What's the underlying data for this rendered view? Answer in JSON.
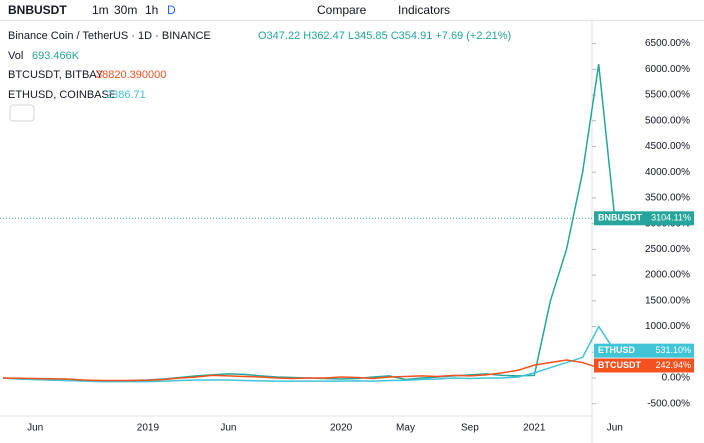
{
  "ui": {
    "symbol": "BNBUSDT",
    "intervals": [
      "1m",
      "30m",
      "1h",
      "D"
    ],
    "compare": "Compare",
    "indicators": "Indicators"
  },
  "legend": {
    "title": "Binance Coin / TetherUS · 1D · BINANCE",
    "ohlc": "O347.22 H362.47 L345.85 C354.91 +7.69 (+2.21%)",
    "vol_name": "Vol",
    "vol": "693.466K",
    "overlays": [
      {
        "name": "BTCUSDT, BITBAY",
        "value": "38820.390000",
        "color": "#f4511e"
      },
      {
        "name": "ETHUSD, COINBASE",
        "value": "2386.71",
        "color": "#40c4d8"
      }
    ]
  },
  "chart_data": {
    "type": "line",
    "categories": [
      null,
      null,
      "Jun",
      null,
      null,
      null,
      null,
      null,
      null,
      "2019",
      null,
      null,
      null,
      null,
      "Jun",
      null,
      null,
      null,
      null,
      null,
      null,
      "2020",
      null,
      null,
      null,
      "May",
      null,
      null,
      null,
      "Sep",
      null,
      null,
      null,
      "2021",
      null,
      null,
      null,
      null,
      "Jun"
    ],
    "series": [
      {
        "name": "BNBUSDT",
        "color": "#26a69a",
        "values": [
          0,
          -20,
          -30,
          -40,
          -50,
          -50,
          -60,
          -55,
          -50,
          -40,
          -20,
          10,
          40,
          60,
          80,
          70,
          40,
          20,
          10,
          0,
          -10,
          -20,
          -10,
          20,
          40,
          -30,
          0,
          20,
          40,
          60,
          80,
          50,
          40,
          50,
          1500,
          2500,
          4000,
          6100,
          3104.11
        ],
        "value_labels": [
          null,
          null,
          null,
          null,
          null,
          null,
          null,
          null,
          null,
          null,
          null,
          null,
          null,
          null,
          null,
          null,
          null,
          null,
          null,
          null,
          null,
          null,
          null,
          null,
          null,
          null,
          null,
          null,
          null,
          null,
          null,
          null,
          null,
          null,
          null,
          null,
          null,
          null,
          "3104.11%"
        ]
      },
      {
        "name": "ETHUSD",
        "color": "#40c4d8",
        "values": [
          0,
          -20,
          -30,
          -40,
          -50,
          -60,
          -70,
          -70,
          -70,
          -70,
          -60,
          -50,
          -40,
          -40,
          -40,
          -50,
          -55,
          -60,
          -60,
          -60,
          -60,
          -60,
          -55,
          -60,
          -50,
          -45,
          -30,
          -20,
          0,
          -10,
          0,
          0,
          20,
          100,
          200,
          300,
          400,
          1000,
          531.1
        ],
        "value_labels": [
          null,
          null,
          null,
          null,
          null,
          null,
          null,
          null,
          null,
          null,
          null,
          null,
          null,
          null,
          null,
          null,
          null,
          null,
          null,
          null,
          null,
          null,
          null,
          null,
          null,
          null,
          null,
          null,
          null,
          null,
          null,
          null,
          null,
          null,
          null,
          null,
          null,
          null,
          "531.10%"
        ]
      },
      {
        "name": "BTCUSDT",
        "color": "#f4511e",
        "values": [
          0,
          -5,
          -10,
          -15,
          -20,
          -40,
          -50,
          -50,
          -50,
          -45,
          -30,
          0,
          20,
          50,
          40,
          30,
          20,
          0,
          -10,
          0,
          0,
          20,
          10,
          -10,
          20,
          30,
          40,
          30,
          50,
          40,
          60,
          100,
          150,
          250,
          300,
          350,
          300,
          200,
          242.94
        ],
        "value_labels": [
          null,
          null,
          null,
          null,
          null,
          null,
          null,
          null,
          null,
          null,
          null,
          null,
          null,
          null,
          null,
          null,
          null,
          null,
          null,
          null,
          null,
          null,
          null,
          null,
          null,
          null,
          null,
          null,
          null,
          null,
          null,
          null,
          null,
          null,
          null,
          null,
          null,
          null,
          "242.94%"
        ]
      }
    ],
    "ylim": [
      -700,
      6900
    ],
    "yticks": [
      {
        "value": -500,
        "label": "-500.00%"
      },
      {
        "value": 0,
        "label": "0.00%"
      },
      {
        "value": 500,
        "label": "500.00%"
      },
      {
        "value": 1000,
        "label": "1000.00%"
      },
      {
        "value": 1500,
        "label": "1500.00%"
      },
      {
        "value": 2000,
        "label": "2000.00%"
      },
      {
        "value": 2500,
        "label": "2500.00%"
      },
      {
        "value": 3000,
        "label": "3000.00%"
      },
      {
        "value": 3500,
        "label": "3500.00%"
      },
      {
        "value": 4000,
        "label": "4000.00%"
      },
      {
        "value": 4500,
        "label": "4500.00%"
      },
      {
        "value": 5000,
        "label": "5000.00%"
      },
      {
        "value": 5500,
        "label": "5500.00%"
      },
      {
        "value": 6000,
        "label": "6000.00%"
      },
      {
        "value": 6500,
        "label": "6500.00%"
      }
    ]
  }
}
